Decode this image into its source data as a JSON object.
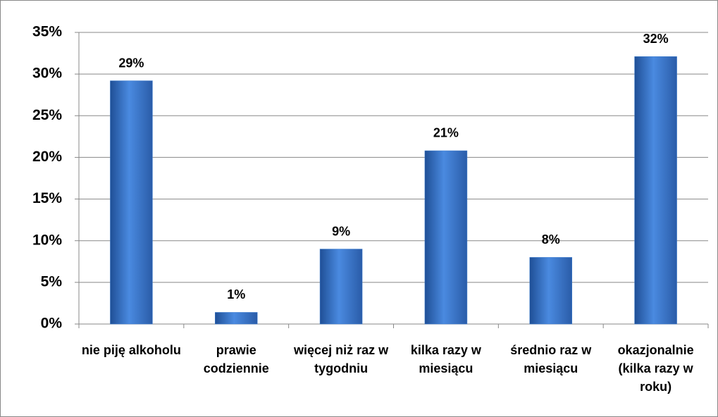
{
  "chart_data": {
    "type": "bar",
    "categories": [
      "nie piję alkoholu",
      "prawie codziennie",
      "więcej niż raz w tygodniu",
      "kilka razy w miesiącu",
      "średnio raz w miesiącu",
      "okazjonalnie (kilka razy w roku)"
    ],
    "values": [
      29.2,
      1.4,
      9,
      20.8,
      8,
      32.1
    ],
    "value_labels": [
      "29%",
      "1%",
      "9%",
      "21%",
      "8%",
      "32%"
    ],
    "color": "#3f7fd0",
    "ylim": [
      0,
      35
    ],
    "yticks": [
      {
        "value": 0,
        "label": "0%"
      },
      {
        "value": 5,
        "label": "5%"
      },
      {
        "value": 10,
        "label": "10%"
      },
      {
        "value": 15,
        "label": "15%"
      },
      {
        "value": 20,
        "label": "20%"
      },
      {
        "value": 25,
        "label": "25%"
      },
      {
        "value": 30,
        "label": "30%"
      },
      {
        "value": 35,
        "label": "35%"
      }
    ],
    "grid": true
  }
}
